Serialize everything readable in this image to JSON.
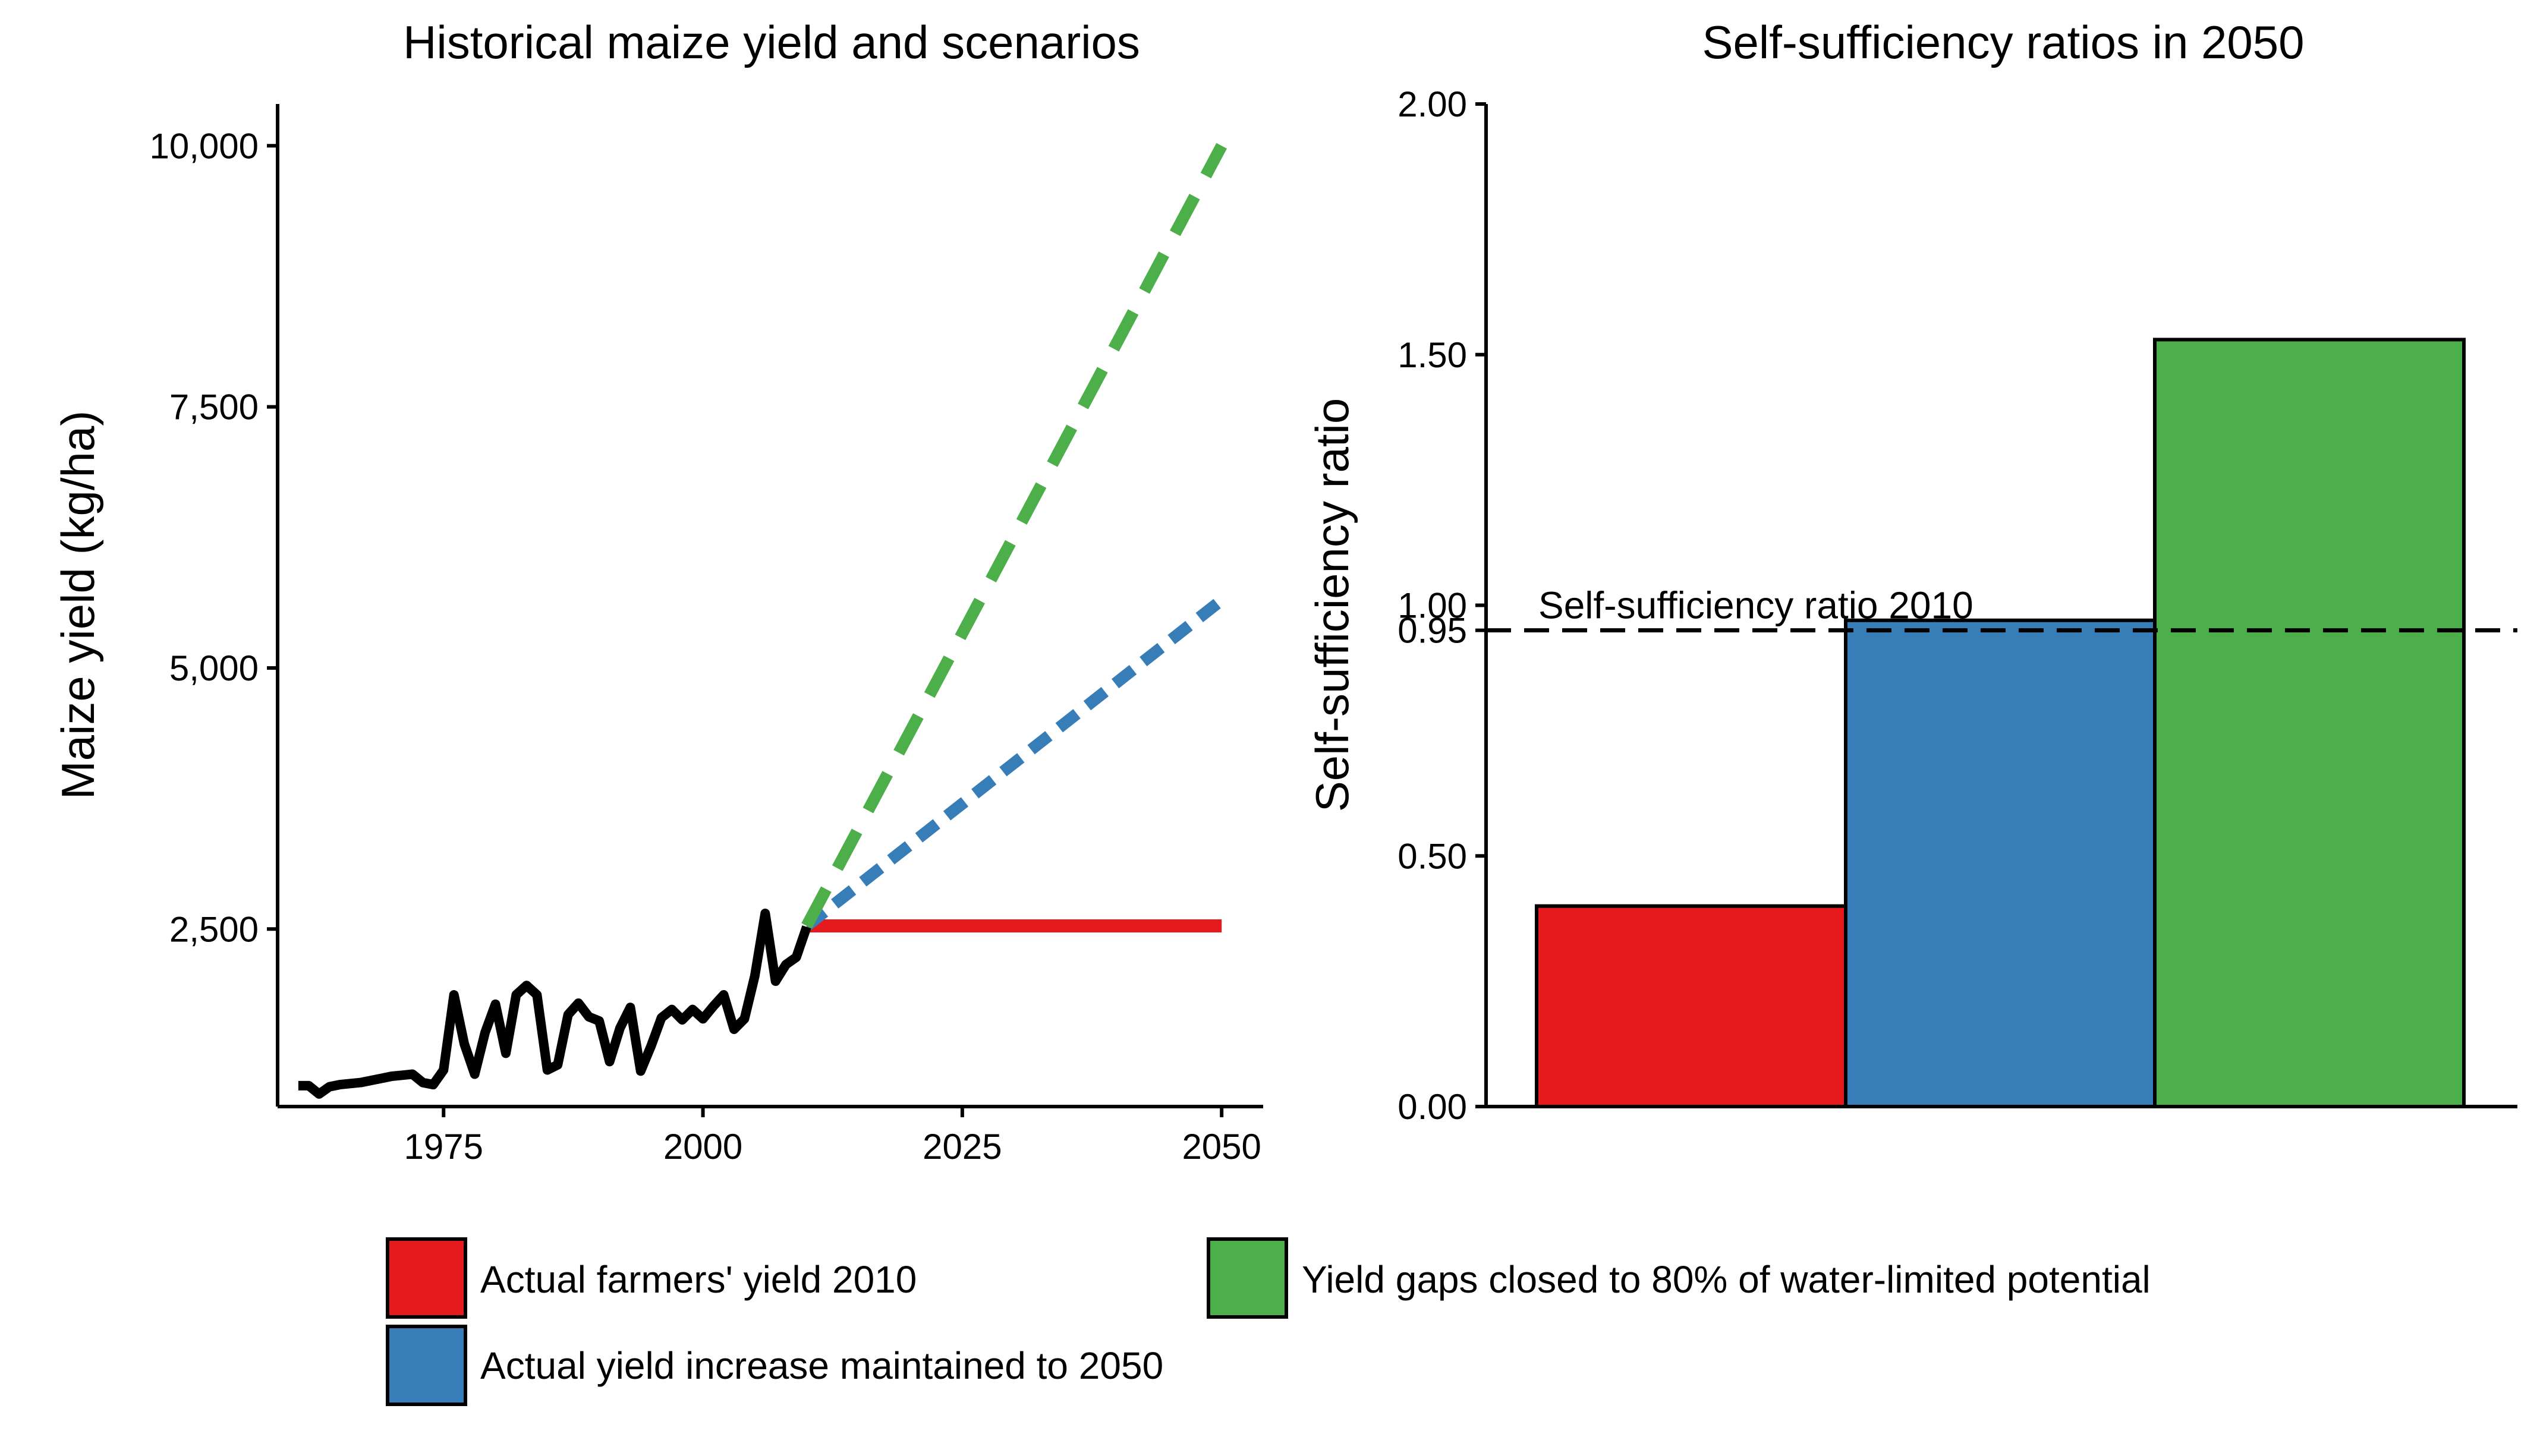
{
  "chart_data": [
    {
      "type": "line",
      "title": "Historical maize yield and scenarios",
      "xlabel": "",
      "ylabel": "Maize yield (kg/ha)",
      "xlim": [
        1959,
        2054
      ],
      "ylim": [
        800,
        10400
      ],
      "x_ticks": [
        1975,
        2000,
        2025,
        2050
      ],
      "y_ticks": [
        2500,
        5000,
        7500,
        10000
      ],
      "y_tick_labels": [
        "2,500",
        "5,000",
        "7,500",
        "10,000"
      ],
      "historical": {
        "color": "#000000",
        "x": [
          1961,
          1962,
          1963,
          1964,
          1965,
          1966,
          1967,
          1968,
          1969,
          1970,
          1971,
          1972,
          1973,
          1974,
          1975,
          1976,
          1977,
          1978,
          1979,
          1980,
          1981,
          1982,
          1983,
          1984,
          1985,
          1986,
          1987,
          1988,
          1989,
          1990,
          1991,
          1992,
          1993,
          1994,
          1995,
          1996,
          1997,
          1998,
          1999,
          2000,
          2001,
          2002,
          2003,
          2004,
          2005,
          2006,
          2007,
          2008,
          2009,
          2010
        ],
        "y": [
          1000,
          1000,
          920,
          990,
          1010,
          1020,
          1030,
          1050,
          1070,
          1090,
          1100,
          1110,
          1030,
          1010,
          1150,
          1870,
          1400,
          1110,
          1510,
          1780,
          1310,
          1870,
          1960,
          1870,
          1150,
          1200,
          1680,
          1790,
          1660,
          1620,
          1230,
          1550,
          1750,
          1140,
          1380,
          1650,
          1730,
          1630,
          1730,
          1640,
          1760,
          1870,
          1540,
          1640,
          2050,
          2650,
          2000,
          2160,
          2230,
          2520
        ]
      },
      "scenarios": [
        {
          "key": "actual",
          "color": "#E41A1C",
          "style": "solid",
          "x": [
            2010,
            2050
          ],
          "y": [
            2530,
            2530
          ]
        },
        {
          "key": "trend",
          "color": "#377EB8",
          "style": "dotted",
          "x": [
            2010,
            2050
          ],
          "y": [
            2530,
            5650
          ]
        },
        {
          "key": "gap",
          "color": "#4DAF4A",
          "style": "dashed",
          "x": [
            2010,
            2050
          ],
          "y": [
            2530,
            10000
          ]
        }
      ]
    },
    {
      "type": "bar",
      "title": "Self-sufficiency ratios in 2050",
      "xlabel": "",
      "ylabel": "Self-sufficiency ratio",
      "ylim": [
        0,
        2
      ],
      "y_ticks": [
        0,
        0.5,
        0.95,
        1.0,
        1.5,
        2.0
      ],
      "y_tick_labels": [
        "0.00",
        "0.50",
        "0.95",
        "1.00",
        "1.50",
        "2.00"
      ],
      "bars": [
        {
          "key": "actual",
          "value": 0.4,
          "color": "#E41A1C"
        },
        {
          "key": "trend",
          "value": 0.97,
          "color": "#377EB8"
        },
        {
          "key": "gap",
          "value": 1.53,
          "color": "#4DAF4A"
        }
      ],
      "reference_line": {
        "value": 0.95,
        "label": "Self-sufficiency ratio 2010",
        "style": "dashed"
      }
    }
  ],
  "legend": [
    {
      "key": "actual",
      "label": "Actual farmers' yield 2010",
      "color": "#E41A1C"
    },
    {
      "key": "gap",
      "label": "Yield gaps closed to 80% of water-limited potential",
      "color": "#4DAF4A"
    },
    {
      "key": "trend",
      "label": "Actual yield increase maintained to 2050",
      "color": "#377EB8"
    }
  ]
}
